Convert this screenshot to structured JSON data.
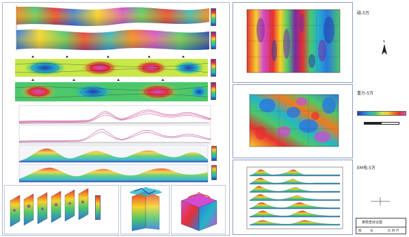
{
  "right_titles": {
    "magnetic": "磁-5万",
    "gravity": "重力-5万",
    "em": "EM电-5万"
  },
  "north_label": "N",
  "title_block": {
    "title": "某勘查综合图",
    "row_labels": [
      "图",
      "号",
      "比 例 尺"
    ]
  },
  "colors": {
    "rainbow": [
      "#7a2aa8",
      "#d24bd0",
      "#e83030",
      "#f07a20",
      "#f5d22a",
      "#c8e84a",
      "#4cc86a",
      "#24b4c8",
      "#2a78e0",
      "#1e3cb0"
    ]
  }
}
